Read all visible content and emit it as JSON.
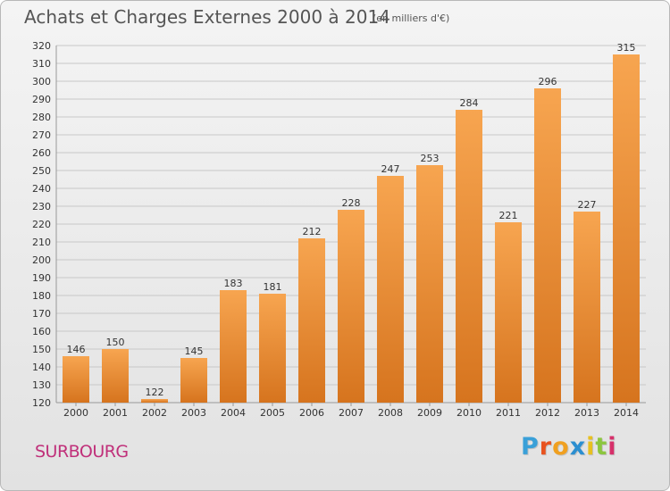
{
  "title": "Achats et Charges Externes 2000 à 2014",
  "unit": "(en milliers d'€)",
  "commune": "SURBOURG",
  "logo": {
    "text": "Proxiti",
    "letter_colors": [
      "#3aa0d8",
      "#e8531f",
      "#f0a020",
      "#2c8fd0",
      "#e8c020",
      "#8cc63f",
      "#d6306a"
    ]
  },
  "colors": {
    "bar_light": "#f7a550",
    "bar_dark": "#d6741e",
    "grid": "#c8c8c8",
    "text": "#333333"
  },
  "chart_data": {
    "type": "bar",
    "categories": [
      "2000",
      "2001",
      "2002",
      "2003",
      "2004",
      "2005",
      "2006",
      "2007",
      "2008",
      "2009",
      "2010",
      "2011",
      "2012",
      "2013",
      "2014"
    ],
    "values": [
      146,
      150,
      122,
      145,
      183,
      181,
      212,
      228,
      247,
      253,
      284,
      221,
      296,
      227,
      315
    ],
    "ylim": [
      120,
      320
    ],
    "ytick_step": 10,
    "grid": true,
    "data_labels": true
  }
}
